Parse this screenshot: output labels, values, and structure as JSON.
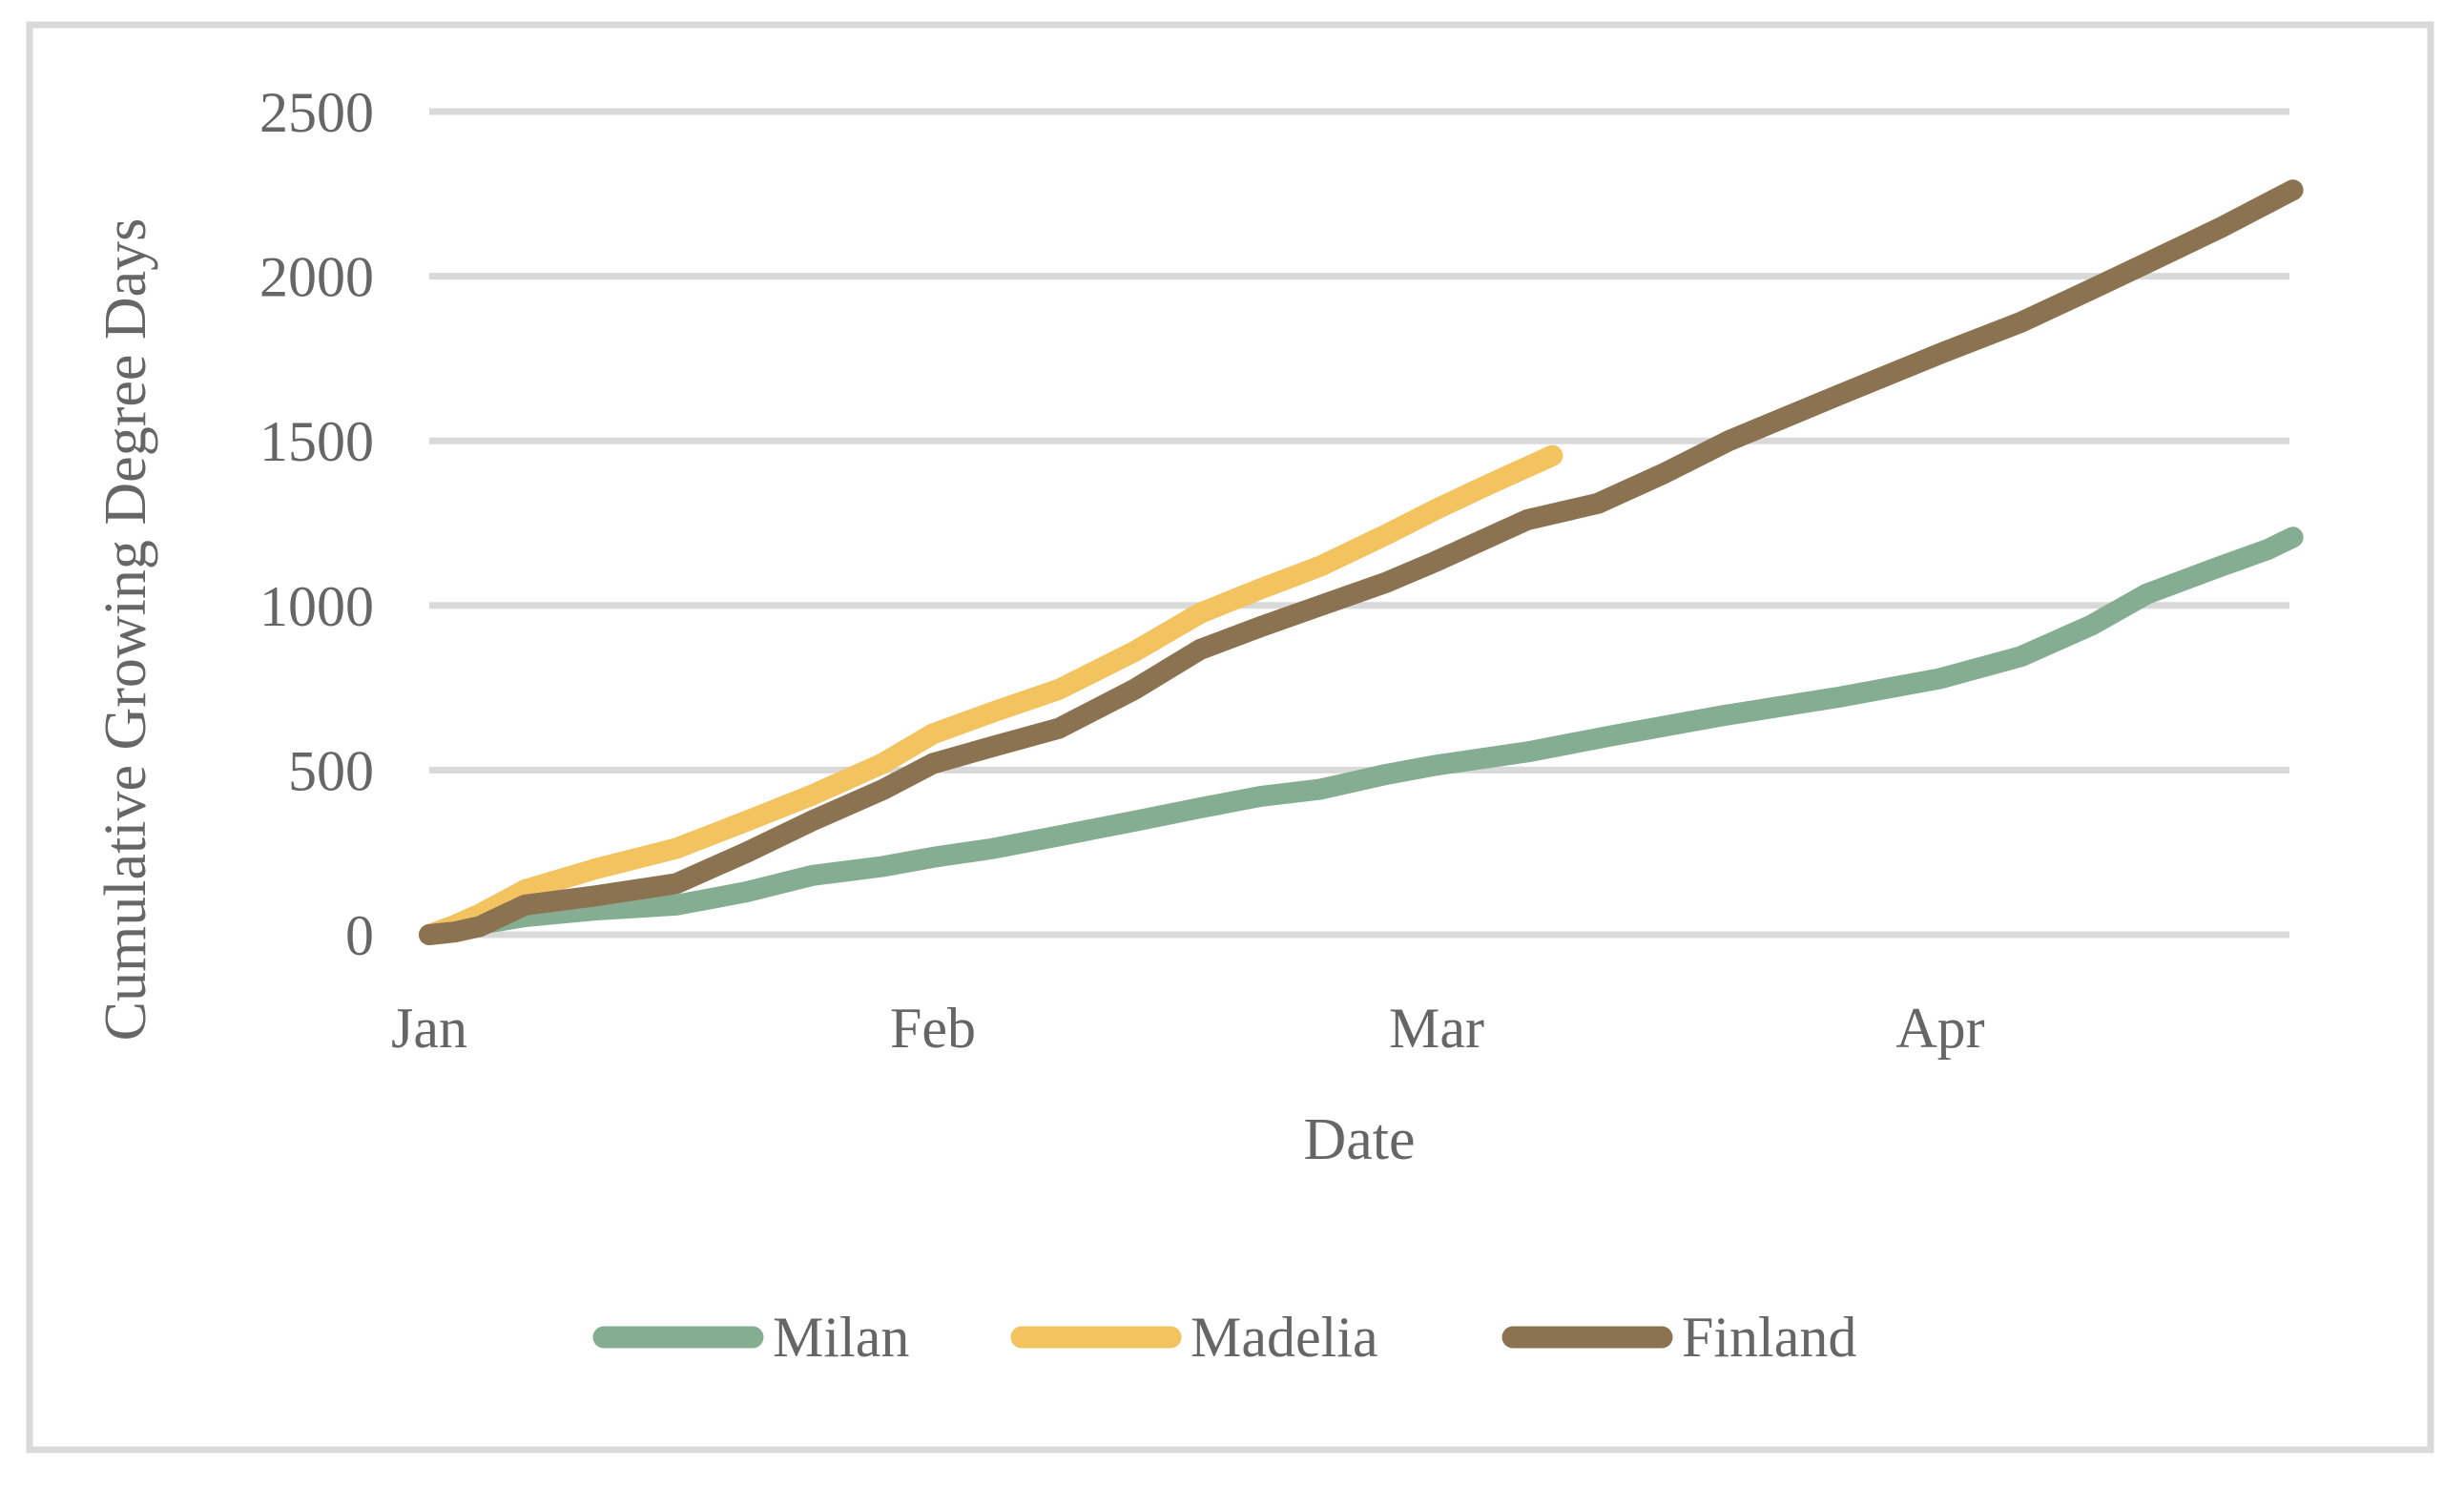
{
  "theme": {
    "background_color": "#ffffff",
    "border_color": "#d9d9d9",
    "gridline_color": "#d9d9d9",
    "text_color": "#666666"
  },
  "chart_data": {
    "type": "line",
    "title": "",
    "xlabel": "Date",
    "ylabel": "Cumulative Growing Degree Days",
    "x_ticks": [
      "Jan",
      "Feb",
      "Mar",
      "Apr"
    ],
    "y_ticks": [
      0,
      500,
      1000,
      1500,
      2000,
      2500
    ],
    "ylim": [
      0,
      2500
    ],
    "xlim_months": [
      0,
      3.75
    ],
    "grid": "horizontal",
    "legend_position": "bottom",
    "x_unit": "months since Jan 1 (uniform month spacing)",
    "series": [
      {
        "name": "Milan",
        "color": "#85ad92",
        "points": [
          [
            0,
            0
          ],
          [
            0.05,
            15
          ],
          [
            0.1,
            32
          ],
          [
            0.19,
            55
          ],
          [
            0.33,
            75
          ],
          [
            0.49,
            90
          ],
          [
            0.63,
            130
          ],
          [
            0.76,
            180
          ],
          [
            0.9,
            207
          ],
          [
            1.0,
            235
          ],
          [
            1.12,
            262
          ],
          [
            1.25,
            300
          ],
          [
            1.4,
            345
          ],
          [
            1.53,
            385
          ],
          [
            1.65,
            420
          ],
          [
            1.77,
            442
          ],
          [
            1.9,
            487
          ],
          [
            2.0,
            515
          ],
          [
            2.18,
            555
          ],
          [
            2.35,
            605
          ],
          [
            2.56,
            663
          ],
          [
            2.8,
            722
          ],
          [
            3.0,
            778
          ],
          [
            3.16,
            845
          ],
          [
            3.3,
            940
          ],
          [
            3.41,
            1035
          ],
          [
            3.55,
            1115
          ],
          [
            3.65,
            1170
          ],
          [
            3.7,
            1207
          ]
        ]
      },
      {
        "name": "Madelia",
        "color": "#f3c35f",
        "points": [
          [
            0,
            0
          ],
          [
            0.05,
            28
          ],
          [
            0.1,
            62
          ],
          [
            0.19,
            136
          ],
          [
            0.33,
            200
          ],
          [
            0.49,
            262
          ],
          [
            0.63,
            345
          ],
          [
            0.76,
            424
          ],
          [
            0.9,
            520
          ],
          [
            1.0,
            610
          ],
          [
            1.12,
            677
          ],
          [
            1.25,
            745
          ],
          [
            1.4,
            860
          ],
          [
            1.53,
            976
          ],
          [
            1.65,
            1050
          ],
          [
            1.77,
            1120
          ],
          [
            1.9,
            1215
          ],
          [
            2.0,
            1293
          ],
          [
            2.1,
            1365
          ],
          [
            2.23,
            1455
          ]
        ]
      },
      {
        "name": "Finland",
        "color": "#8b7352",
        "points": [
          [
            0,
            0
          ],
          [
            0.05,
            8
          ],
          [
            0.1,
            25
          ],
          [
            0.19,
            90
          ],
          [
            0.33,
            118
          ],
          [
            0.49,
            155
          ],
          [
            0.63,
            250
          ],
          [
            0.76,
            346
          ],
          [
            0.9,
            440
          ],
          [
            1.0,
            520
          ],
          [
            1.12,
            572
          ],
          [
            1.25,
            627
          ],
          [
            1.4,
            745
          ],
          [
            1.53,
            866
          ],
          [
            1.65,
            935
          ],
          [
            1.77,
            1000
          ],
          [
            1.9,
            1070
          ],
          [
            2.0,
            1135
          ],
          [
            2.18,
            1260
          ],
          [
            2.32,
            1310
          ],
          [
            2.45,
            1400
          ],
          [
            2.58,
            1500
          ],
          [
            2.8,
            1640
          ],
          [
            3.0,
            1765
          ],
          [
            3.16,
            1860
          ],
          [
            3.3,
            1960
          ],
          [
            3.41,
            2040
          ],
          [
            3.56,
            2150
          ],
          [
            3.7,
            2262
          ]
        ]
      }
    ]
  },
  "legend": {
    "items": [
      {
        "label": "Milan"
      },
      {
        "label": "Madelia"
      },
      {
        "label": "Finland"
      }
    ]
  }
}
